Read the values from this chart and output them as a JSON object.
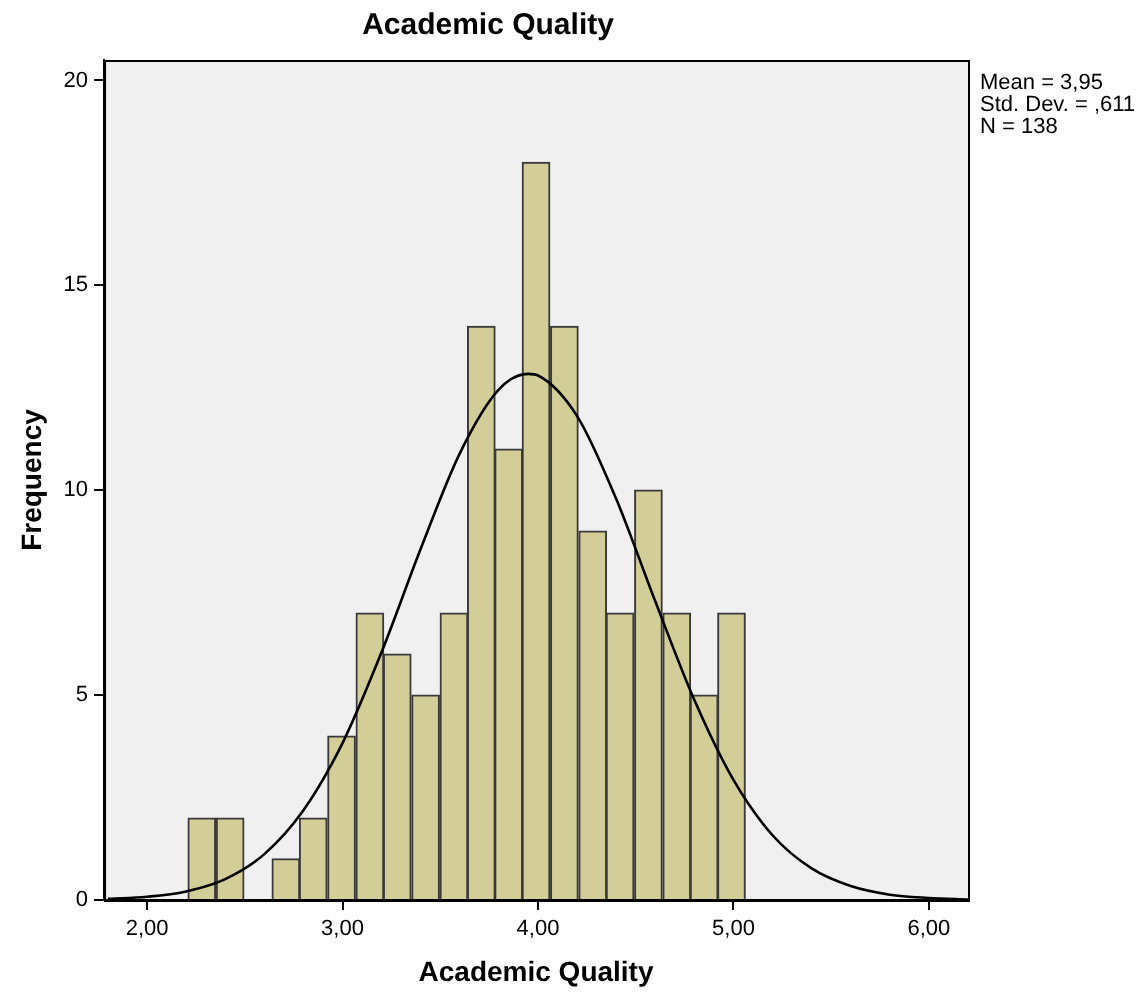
{
  "chart_data": {
    "type": "histogram",
    "title": "Academic Quality",
    "xlabel": "Academic Quality",
    "ylabel": "Frequency",
    "bins": [
      2.21,
      2.35,
      2.5,
      2.64,
      2.78,
      2.92,
      3.07,
      3.21,
      3.35,
      3.5,
      3.64,
      3.78,
      3.92,
      4.06,
      4.21,
      4.35,
      4.49,
      4.64,
      4.78,
      4.92,
      5.06
    ],
    "values": [
      2,
      2,
      0,
      1,
      2,
      4,
      7,
      6,
      5,
      7,
      14,
      11,
      18,
      14,
      9,
      7,
      10,
      7,
      5,
      7
    ],
    "color": "#d3ce98",
    "series": [
      {
        "type": "line",
        "color": "#000000",
        "x": [
          1.8,
          2.0,
          2.2,
          2.4,
          2.6,
          2.8,
          3.0,
          3.2,
          3.4,
          3.6,
          3.8,
          3.95,
          4.0,
          4.2,
          4.4,
          4.6,
          4.8,
          5.0,
          5.2,
          5.4,
          5.6,
          5.8,
          6.0,
          6.2
        ],
        "values": [
          0.03,
          0.08,
          0.21,
          0.51,
          1.12,
          2.19,
          3.83,
          6.05,
          8.57,
          10.9,
          12.46,
          12.84,
          12.8,
          11.81,
          9.79,
          7.29,
          4.88,
          2.93,
          1.58,
          0.77,
          0.34,
          0.13,
          0.05,
          0.01
        ]
      }
    ],
    "xlim": [
      1.78,
      6.2
    ],
    "ylim": [
      0,
      20.5
    ],
    "xticks": [
      {
        "value": 2,
        "label": "2,00"
      },
      {
        "value": 3,
        "label": "3,00"
      },
      {
        "value": 4,
        "label": "4,00"
      },
      {
        "value": 5,
        "label": "5,00"
      },
      {
        "value": 6,
        "label": "6,00"
      }
    ],
    "yticks": [
      0,
      5,
      10,
      15,
      20
    ],
    "annotations": [
      "Mean = 3,95",
      "Std. Dev. = ,611",
      "N = 138"
    ]
  }
}
